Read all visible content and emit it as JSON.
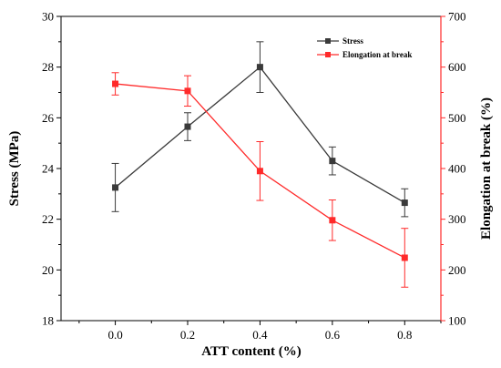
{
  "chart_data": {
    "type": "line",
    "x": [
      0.0,
      0.2,
      0.4,
      0.6,
      0.8
    ],
    "xlabel": "ATT content (%)",
    "xlim": [
      -0.15,
      0.9
    ],
    "xticks": [
      "0.0",
      "0.2",
      "0.4",
      "0.6",
      "0.8"
    ],
    "ylabel_left": "Stress (MPa)",
    "ylim_left": [
      18,
      30
    ],
    "yticks_left": [
      "18",
      "20",
      "22",
      "24",
      "26",
      "28",
      "30"
    ],
    "ylabel_right": "Elongation at break (%)",
    "ylim_right": [
      100,
      700
    ],
    "yticks_right": [
      "100",
      "200",
      "300",
      "400",
      "500",
      "600",
      "700"
    ],
    "legend_position": "top-right",
    "grid": false,
    "series": [
      {
        "name": "Stress",
        "axis": "left",
        "color": "#3a3a3a",
        "values": [
          23.25,
          25.65,
          28.0,
          24.3,
          22.65
        ],
        "errors": [
          0.95,
          0.55,
          1.0,
          0.55,
          0.55
        ]
      },
      {
        "name": "Elongation at break",
        "axis": "right",
        "color": "#ff2a2a",
        "values": [
          567,
          553,
          395,
          298,
          224
        ],
        "errors": [
          22,
          30,
          58,
          40,
          58
        ]
      }
    ]
  }
}
